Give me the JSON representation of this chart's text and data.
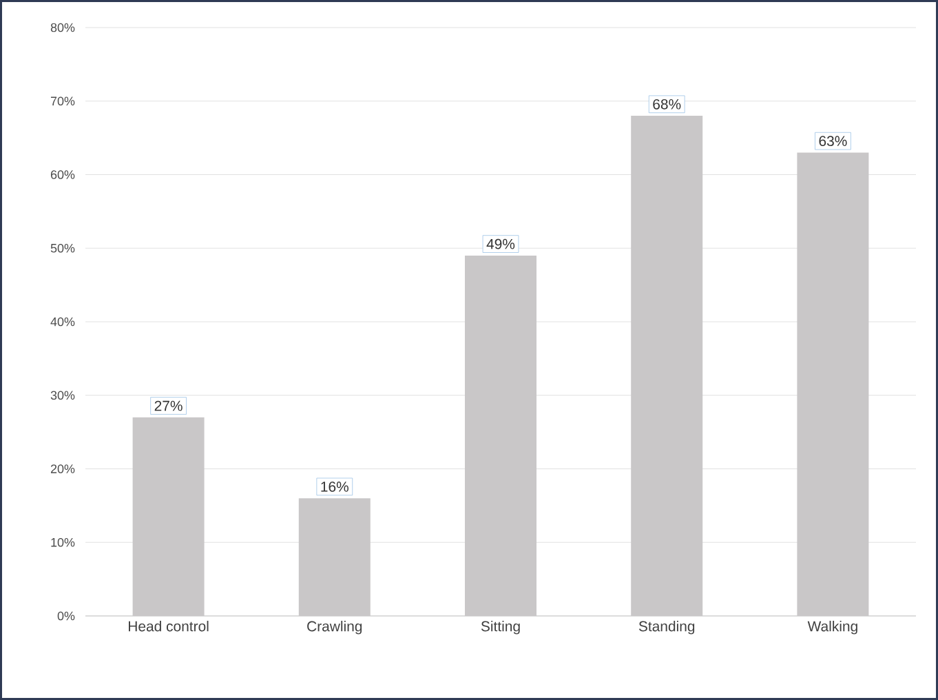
{
  "chart_data": {
    "type": "bar",
    "categories": [
      "Head control",
      "Crawling",
      "Sitting",
      "Standing",
      "Walking"
    ],
    "values": [
      27,
      16,
      49,
      68,
      63
    ],
    "value_labels": [
      "27%",
      "16%",
      "49%",
      "68%",
      "63%"
    ],
    "color": "#c9c7c8",
    "ylim": [
      0,
      80
    ],
    "yticks": [
      {
        "value": 0,
        "label": "0%"
      },
      {
        "value": 10,
        "label": "10%"
      },
      {
        "value": 20,
        "label": "20%"
      },
      {
        "value": 30,
        "label": "30%"
      },
      {
        "value": 40,
        "label": "40%"
      },
      {
        "value": 50,
        "label": "50%"
      },
      {
        "value": 60,
        "label": "60%"
      },
      {
        "value": 70,
        "label": "70%"
      },
      {
        "value": 80,
        "label": "80%"
      }
    ],
    "grid": "y"
  }
}
